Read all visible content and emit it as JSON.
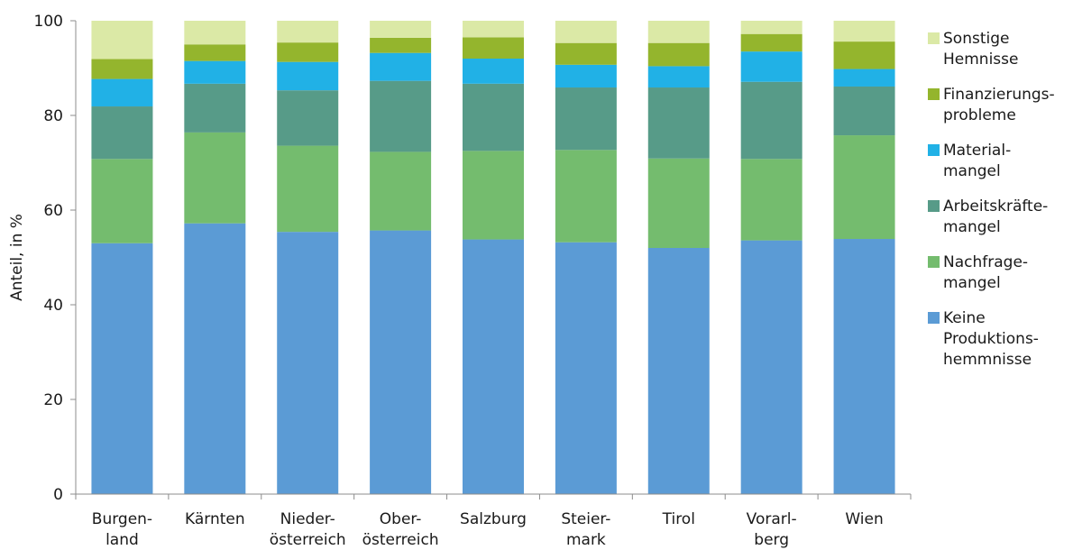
{
  "chart_data": {
    "type": "bar",
    "stacked": true,
    "ylabel": "Anteil, in %",
    "xlabel": "",
    "ylim": [
      0,
      100
    ],
    "yticks": [
      0,
      20,
      40,
      60,
      80,
      100
    ],
    "grid": false,
    "legend_position": "right",
    "categories": [
      [
        "Burgen-",
        "land"
      ],
      [
        "Kärnten"
      ],
      [
        "Nieder-",
        "österreich"
      ],
      [
        "Ober-",
        "österreich"
      ],
      [
        "Salzburg"
      ],
      [
        "Steier-",
        "mark"
      ],
      [
        "Tirol"
      ],
      [
        "Vorarl-",
        "berg"
      ],
      [
        "Wien"
      ]
    ],
    "series": [
      {
        "name": [
          "Keine",
          "Produktions-",
          "hemmnisse"
        ],
        "color": "#5b9bd5",
        "values": [
          53.0,
          57.2,
          55.4,
          55.7,
          53.8,
          53.2,
          52.0,
          53.6,
          53.9
        ]
      },
      {
        "name": [
          "Nachfrage-",
          "mangel"
        ],
        "color": "#74bc6e",
        "values": [
          17.8,
          19.2,
          18.2,
          16.6,
          18.7,
          19.5,
          18.9,
          17.2,
          21.9
        ]
      },
      {
        "name": [
          "Arbeitskräfte-",
          "mangel"
        ],
        "color": "#579b88",
        "values": [
          11.1,
          10.3,
          11.7,
          15.0,
          14.2,
          13.2,
          15.0,
          16.3,
          10.3
        ]
      },
      {
        "name": [
          "Material-",
          "mangel"
        ],
        "color": "#21b1e6",
        "values": [
          5.8,
          4.8,
          6.0,
          5.9,
          5.3,
          4.8,
          4.5,
          6.4,
          3.7
        ]
      },
      {
        "name": [
          "Finanzierungs-",
          "probleme"
        ],
        "color": "#94b52d",
        "values": [
          4.2,
          3.5,
          4.1,
          3.2,
          4.5,
          4.6,
          4.9,
          3.7,
          5.8
        ]
      },
      {
        "name": [
          "Sonstige",
          "Hemnisse"
        ],
        "color": "#dbe9a6",
        "values": [
          8.1,
          5.0,
          4.6,
          3.6,
          3.5,
          4.7,
          4.7,
          2.8,
          4.4
        ]
      }
    ]
  }
}
